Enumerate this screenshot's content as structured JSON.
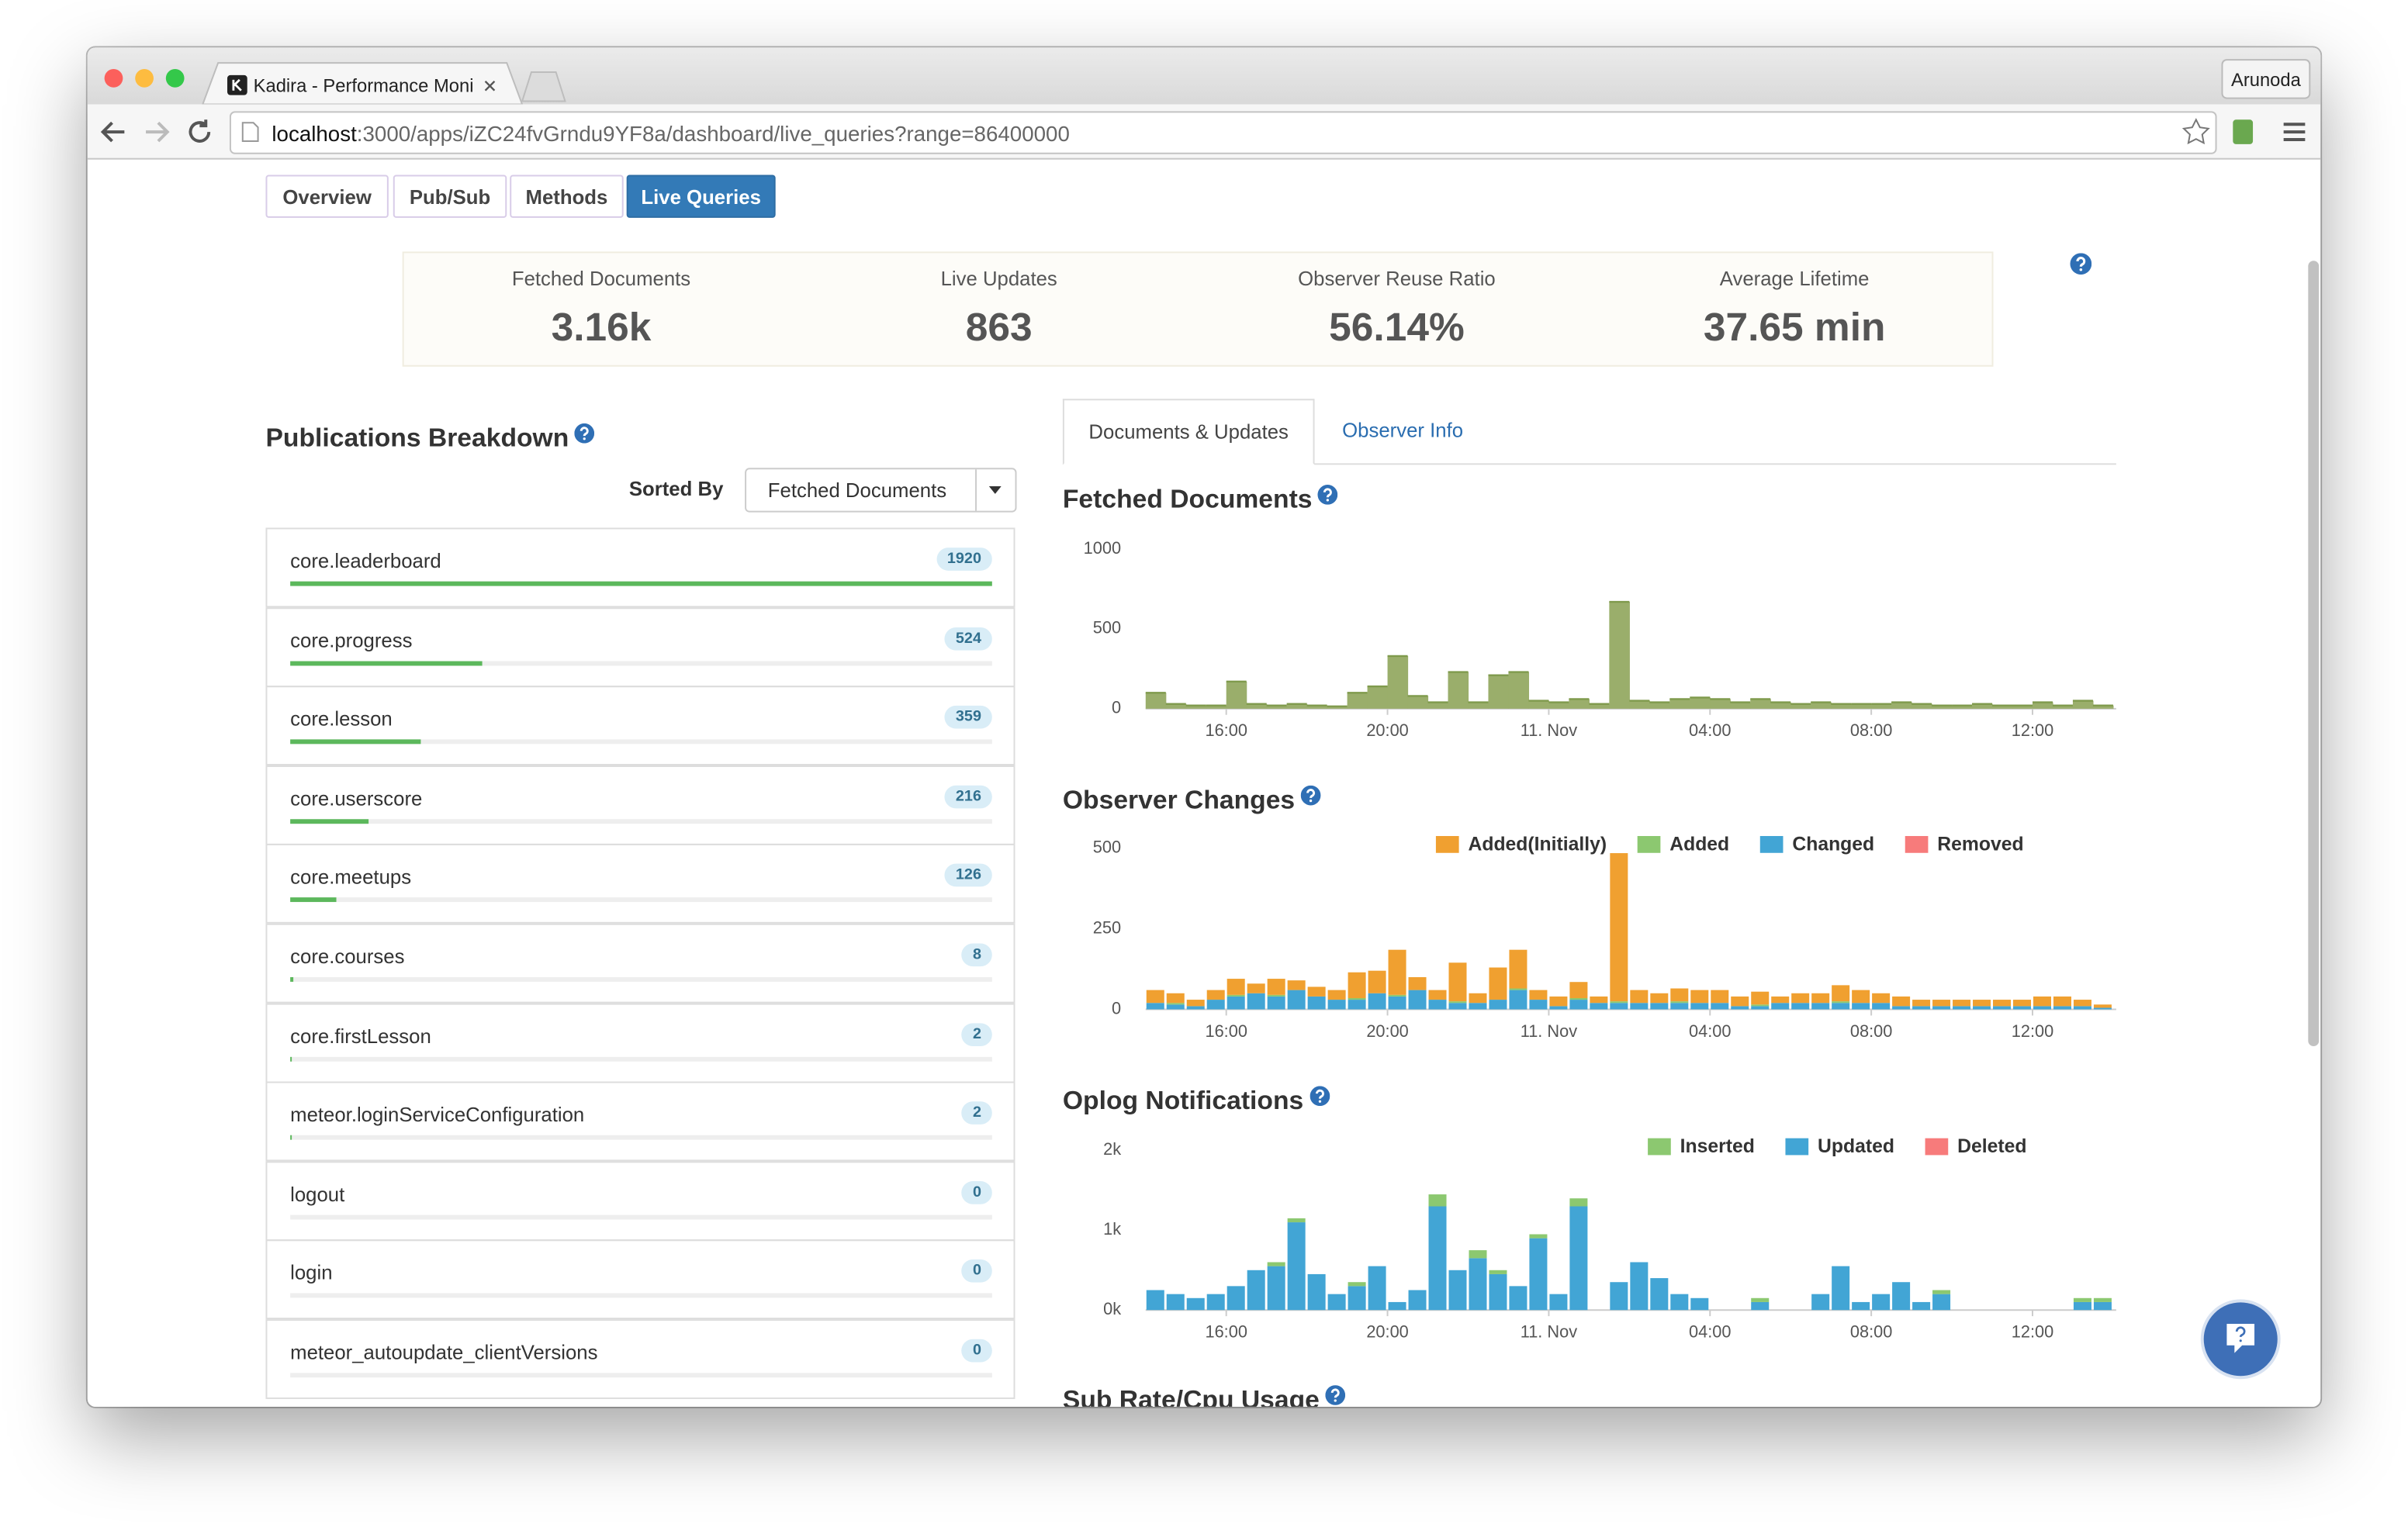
{
  "browser": {
    "tab_title": "Kadira - Performance Moni",
    "url_host": "localhost",
    "url_path": ":3000/apps/iZC24fvGrndu9YF8a/dashboard/live_queries?range=86400000",
    "user": "Arunoda"
  },
  "nav": {
    "tabs": [
      "Overview",
      "Pub/Sub",
      "Methods",
      "Live Queries"
    ],
    "active": 3
  },
  "summary": [
    {
      "label": "Fetched Documents",
      "value": "3.16k"
    },
    {
      "label": "Live Updates",
      "value": "863"
    },
    {
      "label": "Observer Reuse Ratio",
      "value": "56.14%"
    },
    {
      "label": "Average Lifetime",
      "value": "37.65 min"
    }
  ],
  "publications": {
    "title": "Publications Breakdown",
    "sorted_by": "Sorted By",
    "sort_option": "Fetched Documents",
    "items": [
      {
        "name": "core.leaderboard",
        "count": 1920
      },
      {
        "name": "core.progress",
        "count": 524
      },
      {
        "name": "core.lesson",
        "count": 359
      },
      {
        "name": "core.userscore",
        "count": 216
      },
      {
        "name": "core.meetups",
        "count": 126
      },
      {
        "name": "core.courses",
        "count": 8
      },
      {
        "name": "core.firstLesson",
        "count": 2
      },
      {
        "name": "meteor.loginServiceConfiguration",
        "count": 2
      },
      {
        "name": "logout",
        "count": 0
      },
      {
        "name": "login",
        "count": 0
      },
      {
        "name": "meteor_autoupdate_clientVersions",
        "count": 0
      }
    ]
  },
  "chart_tabs": {
    "tabs": [
      "Documents & Updates",
      "Observer Info"
    ],
    "active": 0
  },
  "chart_data": [
    {
      "type": "area",
      "title": "Fetched Documents",
      "color": "#9aae6b",
      "categories": [
        null,
        null,
        null,
        null,
        "16:00",
        null,
        null,
        null,
        null,
        null,
        null,
        null,
        "20:00",
        null,
        null,
        null,
        null,
        null,
        null,
        null,
        "11. Nov",
        null,
        null,
        null,
        null,
        null,
        null,
        null,
        "04:00",
        null,
        null,
        null,
        null,
        null,
        null,
        null,
        "08:00",
        null,
        null,
        null,
        null,
        null,
        null,
        null,
        "12:00",
        null,
        null,
        null
      ],
      "values": [
        100,
        30,
        20,
        20,
        170,
        30,
        20,
        30,
        20,
        15,
        100,
        140,
        330,
        80,
        40,
        230,
        40,
        210,
        230,
        50,
        40,
        60,
        30,
        670,
        50,
        40,
        60,
        70,
        60,
        40,
        60,
        40,
        30,
        40,
        30,
        30,
        30,
        40,
        30,
        20,
        20,
        30,
        20,
        20,
        40,
        20,
        50,
        20
      ],
      "ylim": [
        0,
        1000
      ],
      "yticks": [
        0,
        500,
        1000
      ],
      "grid": false
    },
    {
      "type": "bar",
      "title": "Observer Changes",
      "legend": "top-right",
      "categories": [
        null,
        null,
        null,
        null,
        "16:00",
        null,
        null,
        null,
        null,
        null,
        null,
        null,
        "20:00",
        null,
        null,
        null,
        null,
        null,
        null,
        null,
        "11. Nov",
        null,
        null,
        null,
        null,
        null,
        null,
        null,
        "04:00",
        null,
        null,
        null,
        null,
        null,
        null,
        null,
        "08:00",
        null,
        null,
        null,
        null,
        null,
        null,
        null,
        "12:00",
        null,
        null,
        null
      ],
      "series": [
        {
          "name": "Added(Initially)",
          "color": "#f0a030",
          "values": [
            40,
            30,
            20,
            30,
            50,
            30,
            50,
            30,
            30,
            30,
            80,
            70,
            140,
            40,
            30,
            120,
            30,
            100,
            120,
            30,
            30,
            50,
            20,
            460,
            40,
            30,
            40,
            40,
            40,
            30,
            40,
            20,
            30,
            30,
            50,
            40,
            30,
            30,
            20,
            20,
            20,
            20,
            20,
            20,
            30,
            30,
            20,
            10
          ]
        },
        {
          "name": "Added",
          "color": "#8cc870",
          "values": [
            0,
            5,
            0,
            0,
            5,
            0,
            5,
            0,
            0,
            0,
            5,
            0,
            5,
            0,
            0,
            5,
            0,
            0,
            5,
            0,
            0,
            5,
            0,
            5,
            0,
            0,
            5,
            0,
            0,
            0,
            5,
            0,
            0,
            0,
            5,
            0,
            0,
            0,
            0,
            0,
            0,
            0,
            0,
            0,
            0,
            0,
            0,
            0
          ]
        },
        {
          "name": "Changed",
          "color": "#42a5d5",
          "values": [
            20,
            15,
            10,
            30,
            40,
            50,
            40,
            60,
            40,
            30,
            30,
            50,
            40,
            60,
            30,
            20,
            20,
            30,
            60,
            30,
            10,
            30,
            20,
            20,
            20,
            20,
            20,
            20,
            20,
            10,
            10,
            20,
            20,
            20,
            20,
            20,
            20,
            10,
            10,
            10,
            10,
            10,
            10,
            10,
            10,
            10,
            10,
            5
          ]
        },
        {
          "name": "Removed",
          "color": "#f77b7b",
          "values": [
            0,
            0,
            0,
            0,
            0,
            0,
            0,
            0,
            0,
            0,
            0,
            0,
            0,
            0,
            0,
            0,
            0,
            0,
            0,
            0,
            0,
            0,
            0,
            0,
            0,
            0,
            0,
            0,
            0,
            0,
            0,
            0,
            0,
            0,
            0,
            0,
            0,
            0,
            0,
            0,
            0,
            0,
            0,
            0,
            0,
            0,
            0,
            0
          ]
        }
      ],
      "ylim": [
        0,
        500
      ],
      "yticks": [
        0,
        250,
        500
      ],
      "grid": false
    },
    {
      "type": "bar",
      "title": "Oplog Notifications",
      "legend": "top-right",
      "categories": [
        null,
        null,
        null,
        null,
        "16:00",
        null,
        null,
        null,
        null,
        null,
        null,
        null,
        "20:00",
        null,
        null,
        null,
        null,
        null,
        null,
        null,
        "11. Nov",
        null,
        null,
        null,
        null,
        null,
        null,
        null,
        "04:00",
        null,
        null,
        null,
        null,
        null,
        null,
        null,
        "08:00",
        null,
        null,
        null,
        null,
        null,
        null,
        null,
        "12:00",
        null,
        null,
        null
      ],
      "series": [
        {
          "name": "Inserted",
          "color": "#8cc870",
          "values": [
            0,
            0,
            0,
            0,
            0,
            0,
            50,
            50,
            0,
            0,
            50,
            0,
            0,
            0,
            150,
            0,
            100,
            50,
            0,
            50,
            0,
            100,
            0,
            0,
            0,
            0,
            0,
            0,
            0,
            0,
            50,
            0,
            0,
            0,
            0,
            0,
            0,
            0,
            0,
            50,
            0,
            0,
            0,
            0,
            0,
            0,
            50,
            50
          ]
        },
        {
          "name": "Updated",
          "color": "#42a5d5",
          "values": [
            250,
            200,
            150,
            200,
            300,
            500,
            550,
            1100,
            450,
            200,
            300,
            550,
            100,
            250,
            1300,
            500,
            650,
            450,
            300,
            900,
            200,
            1300,
            0,
            350,
            600,
            400,
            200,
            150,
            0,
            0,
            100,
            0,
            0,
            200,
            550,
            100,
            200,
            350,
            100,
            200,
            0,
            0,
            0,
            0,
            0,
            0,
            100,
            100
          ]
        },
        {
          "name": "Deleted",
          "color": "#f77b7b",
          "values": [
            0,
            0,
            0,
            0,
            0,
            0,
            0,
            0,
            0,
            0,
            0,
            0,
            0,
            0,
            0,
            0,
            0,
            0,
            0,
            0,
            0,
            0,
            0,
            0,
            0,
            0,
            0,
            0,
            0,
            0,
            0,
            0,
            0,
            0,
            0,
            0,
            0,
            0,
            0,
            0,
            0,
            0,
            0,
            0,
            0,
            0,
            0,
            0
          ]
        }
      ],
      "ylim": [
        0,
        2000
      ],
      "yticks": [
        {
          "value": 0,
          "label": "0k"
        },
        {
          "value": 1000,
          "label": "1k"
        },
        {
          "value": 2000,
          "label": "2k"
        }
      ],
      "grid": false
    }
  ],
  "next_section": "Sub Rate/Cpu Usage"
}
